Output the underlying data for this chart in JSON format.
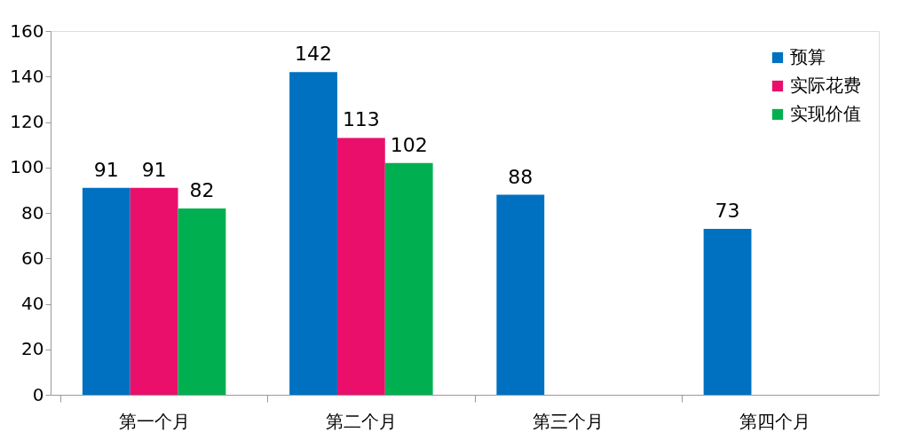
{
  "chart_data": {
    "type": "bar",
    "categories": [
      "第一个月",
      "第二个月",
      "第三个月",
      "第四个月"
    ],
    "series": [
      {
        "name": "预算",
        "color": "#0070c0",
        "values": [
          91,
          142,
          88,
          73
        ]
      },
      {
        "name": "实际花费",
        "color": "#ea0f6b",
        "values": [
          91,
          113,
          null,
          null
        ]
      },
      {
        "name": "实现价值",
        "color": "#00b050",
        "values": [
          82,
          102,
          null,
          null
        ]
      }
    ],
    "ylim": [
      0,
      160
    ],
    "yticks": [
      0,
      20,
      40,
      60,
      80,
      100,
      120,
      140,
      160
    ],
    "grid": false,
    "legend": "top right",
    "data_labels": true
  }
}
